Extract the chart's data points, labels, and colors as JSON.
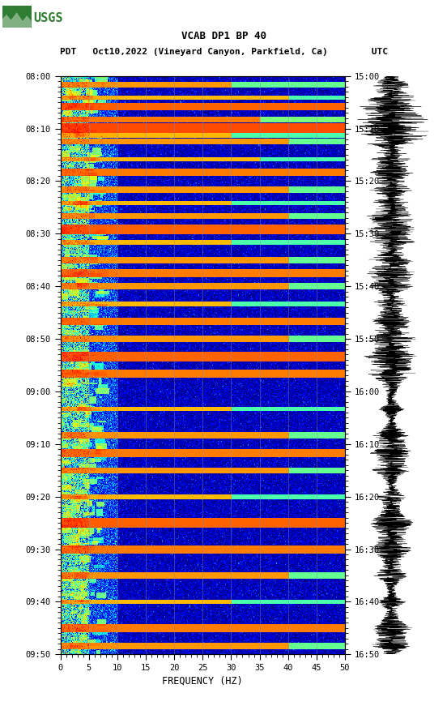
{
  "title_line1": "VCAB DP1 BP 40",
  "title_line2": "PDT   Oct10,2022 (Vineyard Canyon, Parkfield, Ca)        UTC",
  "left_yticks": [
    "08:00",
    "08:10",
    "08:20",
    "08:30",
    "08:40",
    "08:50",
    "09:00",
    "09:10",
    "09:20",
    "09:30",
    "09:40",
    "09:50"
  ],
  "right_yticks": [
    "15:00",
    "15:10",
    "15:20",
    "15:30",
    "15:40",
    "15:50",
    "16:00",
    "16:10",
    "16:20",
    "16:30",
    "16:40",
    "16:50"
  ],
  "xticks": [
    0,
    5,
    10,
    15,
    20,
    25,
    30,
    35,
    40,
    45,
    50
  ],
  "xlabel": "FREQUENCY (HZ)",
  "xlim": [
    0,
    50
  ],
  "background_color": "#ffffff",
  "usgs_green": "#2e7d32",
  "vgrid_color": "#8888aa",
  "vgrid_alpha": 0.6,
  "freq_steps": 500,
  "time_steps": 660,
  "event_rows": [
    10,
    25,
    35,
    50,
    60,
    68,
    75,
    95,
    110,
    130,
    145,
    160,
    175,
    190,
    210,
    225,
    240,
    260,
    280,
    300,
    320,
    340,
    380,
    410,
    430,
    450,
    480,
    510,
    540,
    570,
    600,
    630,
    650
  ],
  "event_widths": [
    3,
    2,
    4,
    3,
    5,
    2,
    3,
    2,
    4,
    3,
    2,
    3,
    5,
    2,
    3,
    4,
    3,
    2,
    4,
    3,
    5,
    4,
    2,
    3,
    4,
    3,
    2,
    5,
    4,
    3,
    2,
    4,
    3
  ],
  "event_intensities": [
    6,
    5,
    8,
    7,
    9,
    5,
    6,
    5,
    7,
    6,
    5,
    6,
    8,
    5,
    6,
    7,
    6,
    5,
    7,
    6,
    8,
    7,
    5,
    6,
    7,
    6,
    5,
    8,
    7,
    6,
    5,
    7,
    6
  ],
  "event_freq_extents": [
    60,
    80,
    100,
    70,
    120,
    60,
    80,
    70,
    100,
    80,
    60,
    80,
    120,
    60,
    80,
    100,
    80,
    60,
    100,
    80,
    120,
    100,
    60,
    80,
    100,
    80,
    60,
    120,
    100,
    80,
    60,
    100,
    80
  ]
}
